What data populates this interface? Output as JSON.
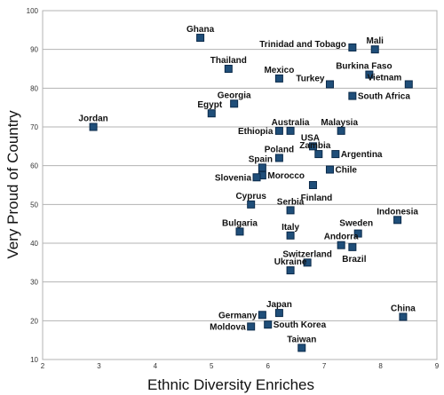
{
  "chart_data": {
    "type": "scatter",
    "xlabel": "Ethnic Diversity Enriches",
    "ylabel": "Very Proud of Country",
    "xlim": [
      2,
      9
    ],
    "ylim": [
      10,
      100
    ],
    "x_ticks": [
      2,
      3,
      4,
      5,
      6,
      7,
      8,
      9
    ],
    "y_ticks": [
      10,
      20,
      30,
      40,
      50,
      60,
      70,
      80,
      90,
      100
    ],
    "grid": "horizontal",
    "marker_color": "#1f4e79",
    "points": [
      {
        "label": "Ghana",
        "x": 4.8,
        "y": 93
      },
      {
        "label": "Mali",
        "x": 7.9,
        "y": 90
      },
      {
        "label": "Trinidad and Tobago",
        "x": 7.5,
        "y": 90.5
      },
      {
        "label": "Thailand",
        "x": 5.3,
        "y": 85
      },
      {
        "label": "Mexico",
        "x": 6.2,
        "y": 82.5
      },
      {
        "label": "Burkina Faso",
        "x": 7.8,
        "y": 83.5
      },
      {
        "label": "Vietnam",
        "x": 8.5,
        "y": 81
      },
      {
        "label": "Turkey",
        "x": 7.1,
        "y": 81
      },
      {
        "label": "South Africa",
        "x": 7.5,
        "y": 78
      },
      {
        "label": "Georgia",
        "x": 5.4,
        "y": 76
      },
      {
        "label": "Egypt",
        "x": 5.0,
        "y": 73.5
      },
      {
        "label": "Jordan",
        "x": 2.9,
        "y": 70
      },
      {
        "label": "Australia",
        "x": 6.4,
        "y": 69
      },
      {
        "label": "Ethiopia",
        "x": 6.2,
        "y": 69
      },
      {
        "label": "Malaysia",
        "x": 7.3,
        "y": 69
      },
      {
        "label": "USA",
        "x": 6.8,
        "y": 65
      },
      {
        "label": "Argentina",
        "x": 7.2,
        "y": 63
      },
      {
        "label": "Poland",
        "x": 6.2,
        "y": 62
      },
      {
        "label": "Zambia",
        "x": 6.9,
        "y": 63
      },
      {
        "label": "Spain",
        "x": 5.9,
        "y": 59.5
      },
      {
        "label": "Chile",
        "x": 7.1,
        "y": 59
      },
      {
        "label": "Morocco",
        "x": 5.9,
        "y": 57.5
      },
      {
        "label": "Slovenia",
        "x": 5.8,
        "y": 57
      },
      {
        "label": "Finland",
        "x": 6.8,
        "y": 55
      },
      {
        "label": "Cyprus",
        "x": 5.7,
        "y": 50
      },
      {
        "label": "Serbia",
        "x": 6.4,
        "y": 48.5
      },
      {
        "label": "Indonesia",
        "x": 8.3,
        "y": 46
      },
      {
        "label": "Bulgaria",
        "x": 5.5,
        "y": 43
      },
      {
        "label": "Italy",
        "x": 6.4,
        "y": 42
      },
      {
        "label": "Sweden",
        "x": 7.6,
        "y": 42.5
      },
      {
        "label": "Andorra",
        "x": 7.3,
        "y": 39.5
      },
      {
        "label": "Brazil",
        "x": 7.5,
        "y": 39
      },
      {
        "label": "Switzerland",
        "x": 6.7,
        "y": 35
      },
      {
        "label": "Ukraine",
        "x": 6.4,
        "y": 33
      },
      {
        "label": "China",
        "x": 8.4,
        "y": 21
      },
      {
        "label": "Japan",
        "x": 6.2,
        "y": 22
      },
      {
        "label": "Germany",
        "x": 5.9,
        "y": 21.5
      },
      {
        "label": "Moldova",
        "x": 5.7,
        "y": 18.5
      },
      {
        "label": "South Korea",
        "x": 6.0,
        "y": 19
      },
      {
        "label": "Taiwan",
        "x": 6.6,
        "y": 13
      }
    ]
  }
}
